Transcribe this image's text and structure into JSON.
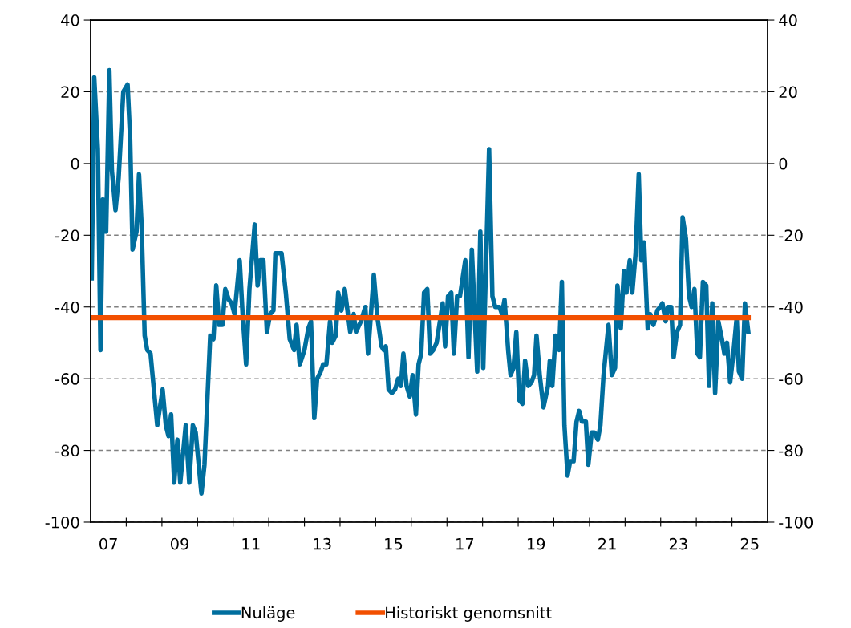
{
  "chart_data": {
    "type": "line",
    "xlim": [
      "2007-01-01",
      "2026-01-01"
    ],
    "xticks": [
      {
        "value": "2008-01-01",
        "label": null
      },
      {
        "value": "2009-01-01",
        "label": null
      },
      {
        "value": "2010-01-01",
        "label": null
      },
      {
        "value": "2011-01-01",
        "label": null
      },
      {
        "value": "2012-01-01",
        "label": null
      },
      {
        "value": "2013-01-01",
        "label": null
      },
      {
        "value": "2014-01-01",
        "label": null
      },
      {
        "value": "2015-01-01",
        "label": null
      },
      {
        "value": "2016-01-01",
        "label": null
      },
      {
        "value": "2017-01-01",
        "label": null
      },
      {
        "value": "2018-01-01",
        "label": null
      },
      {
        "value": "2019-01-01",
        "label": null
      },
      {
        "value": "2020-01-01",
        "label": null
      },
      {
        "value": "2021-01-01",
        "label": null
      },
      {
        "value": "2022-01-01",
        "label": null
      },
      {
        "value": "2023-01-01",
        "label": null
      },
      {
        "value": "2024-01-01",
        "label": null
      },
      {
        "value": "2025-01-01",
        "label": null
      },
      {
        "value": "2007-07-02",
        "label": "07"
      },
      {
        "value": "2009-07-02",
        "label": "09"
      },
      {
        "value": "2011-07-02",
        "label": "11"
      },
      {
        "value": "2013-07-02",
        "label": "13"
      },
      {
        "value": "2015-07-02",
        "label": "15"
      },
      {
        "value": "2017-07-02",
        "label": "17"
      },
      {
        "value": "2019-07-02",
        "label": "19"
      },
      {
        "value": "2021-07-02",
        "label": "21"
      },
      {
        "value": "2023-07-02",
        "label": "23"
      },
      {
        "value": "2025-07-02",
        "label": "25"
      }
    ],
    "ylim": [
      -100,
      40
    ],
    "yticks": [
      -100,
      -80,
      -60,
      -40,
      -20,
      0,
      20,
      40
    ],
    "y2lim": [
      -100,
      40
    ],
    "y2ticks": [
      -100,
      -80,
      -60,
      -40,
      -20,
      0,
      20,
      40
    ],
    "grid": "y",
    "legend": "bottom",
    "marker": "none",
    "line_style": "solid",
    "ref_lines": [
      {
        "axis": "y",
        "value": 0,
        "label": null,
        "color": "#a0a0a0",
        "line_style": "solid"
      }
    ],
    "series": [
      {
        "name": "Nuläge",
        "color": "#006e9e",
        "x": [
          "2007-01-12",
          "2007-02-07",
          "2007-03-16",
          "2007-04-12",
          "2007-05-07",
          "2007-06-09",
          "2007-07-12",
          "2007-08-07",
          "2007-09-13",
          "2007-10-15",
          "2007-12-02",
          "2008-01-15",
          "2008-02-10",
          "2008-03-06",
          "2008-04-15",
          "2008-05-11",
          "2008-06-06",
          "2008-07-08",
          "2008-08-03",
          "2008-09-06",
          "2008-11-14",
          "2009-01-08",
          "2009-02-10",
          "2009-03-09",
          "2009-04-05",
          "2009-05-07",
          "2009-06-09",
          "2009-07-08",
          "2009-09-02",
          "2009-10-08",
          "2009-11-14",
          "2009-12-13",
          "2010-02-10",
          "2010-03-13",
          "2010-05-11",
          "2010-06-13",
          "2010-07-12",
          "2010-08-10",
          "2010-09-13",
          "2010-10-12",
          "2010-11-18",
          "2010-12-17",
          "2011-01-15",
          "2011-03-09",
          "2011-04-08",
          "2011-05-14",
          "2011-06-17",
          "2011-08-10",
          "2011-09-09",
          "2011-10-05",
          "2011-11-07",
          "2011-12-13",
          "2012-01-15",
          "2012-02-18",
          "2012-03-09",
          "2012-05-11",
          "2012-06-24",
          "2012-08-03",
          "2012-09-17",
          "2012-10-12",
          "2012-11-14",
          "2013-01-01",
          "2013-02-10",
          "2013-03-09",
          "2013-04-12",
          "2013-05-11",
          "2013-06-17",
          "2013-07-12",
          "2013-08-14",
          "2013-09-20",
          "2013-10-12",
          "2013-11-18",
          "2013-12-13",
          "2014-01-15",
          "2014-02-18",
          "2014-04-15",
          "2014-05-21",
          "2014-06-13",
          "2014-08-03",
          "2014-09-17",
          "2014-10-15",
          "2014-12-13",
          "2015-01-19",
          "2015-03-02",
          "2015-03-24",
          "2015-04-15",
          "2015-05-14",
          "2015-06-17",
          "2015-07-19",
          "2015-08-21",
          "2015-09-17",
          "2015-10-12",
          "2015-11-14",
          "2015-12-17",
          "2016-01-15",
          "2016-02-18",
          "2016-03-16",
          "2016-04-12",
          "2016-05-11",
          "2016-06-13",
          "2016-07-12",
          "2016-08-14",
          "2016-09-17",
          "2016-11-18",
          "2016-12-13",
          "2017-01-12",
          "2017-02-14",
          "2017-03-13",
          "2017-04-15",
          "2017-05-14",
          "2017-07-08",
          "2017-08-10",
          "2017-09-13",
          "2017-11-07",
          "2017-12-09",
          "2018-01-08",
          "2018-03-09",
          "2018-04-12",
          "2018-05-11",
          "2018-06-24",
          "2018-07-19",
          "2018-08-14",
          "2018-09-20",
          "2018-10-15",
          "2018-11-14",
          "2018-12-13",
          "2019-01-12",
          "2019-02-14",
          "2019-03-13",
          "2019-04-15",
          "2019-05-18",
          "2019-06-13",
          "2019-07-08",
          "2019-08-10",
          "2019-09-17",
          "2019-11-03",
          "2019-11-21",
          "2019-12-17",
          "2020-01-19",
          "2020-02-25",
          "2020-03-24",
          "2020-04-19",
          "2020-05-21",
          "2020-06-17",
          "2020-07-22",
          "2020-08-21",
          "2020-09-17",
          "2020-10-15",
          "2020-11-25",
          "2020-12-20",
          "2021-01-23",
          "2021-02-21",
          "2021-03-27",
          "2021-04-23",
          "2021-05-25",
          "2021-07-15",
          "2021-08-18",
          "2021-09-20",
          "2021-10-15",
          "2021-11-18",
          "2021-12-20",
          "2022-01-15",
          "2022-02-18",
          "2022-03-16",
          "2022-04-19",
          "2022-05-21",
          "2022-06-17",
          "2022-07-15",
          "2022-08-21",
          "2022-09-17",
          "2022-10-19",
          "2022-11-28",
          "2023-01-19",
          "2023-02-21",
          "2023-03-16",
          "2023-04-19",
          "2023-05-14",
          "2023-06-17",
          "2023-07-19",
          "2023-08-14",
          "2023-09-17",
          "2023-10-19",
          "2023-11-14",
          "2023-12-13",
          "2024-01-12",
          "2024-02-07",
          "2024-03-09",
          "2024-04-12",
          "2024-05-11",
          "2024-06-13",
          "2024-07-12",
          "2024-08-14",
          "2024-09-20",
          "2024-10-15",
          "2024-11-11",
          "2024-12-13",
          "2025-01-15",
          "2025-02-18",
          "2025-03-13",
          "2025-04-15",
          "2025-05-14",
          "2025-06-17"
        ],
        "values": [
          -32,
          24,
          4,
          -52,
          -10,
          -19,
          26,
          -2,
          -13,
          -4,
          20,
          22,
          7,
          -24,
          -19,
          -3,
          -17,
          -48,
          -52,
          -53,
          -73,
          -63,
          -73,
          -76,
          -70,
          -89,
          -77,
          -89,
          -73,
          -89,
          -73,
          -75,
          -92,
          -84,
          -48,
          -49,
          -34,
          -45,
          -45,
          -35,
          -38,
          -39,
          -42,
          -27,
          -42,
          -56,
          -35,
          -17,
          -34,
          -27,
          -27,
          -47,
          -42,
          -41,
          -25,
          -25,
          -36,
          -49,
          -52,
          -45,
          -56,
          -52,
          -46,
          -44,
          -71,
          -60,
          -58,
          -56,
          -56,
          -44,
          -50,
          -48,
          -36,
          -41,
          -35,
          -47,
          -42,
          -47,
          -44,
          -40,
          -53,
          -31,
          -43,
          -51,
          -52,
          -51,
          -63,
          -64,
          -63,
          -60,
          -62,
          -53,
          -62,
          -65,
          -59,
          -70,
          -56,
          -53,
          -36,
          -35,
          -53,
          -52,
          -50,
          -39,
          -51,
          -37,
          -36,
          -53,
          -37,
          -37,
          -27,
          -54,
          -24,
          -58,
          -19,
          -57,
          4,
          -37,
          -40,
          -40,
          -42,
          -38,
          -52,
          -59,
          -57,
          -47,
          -66,
          -67,
          -55,
          -62,
          -61,
          -59,
          -48,
          -59,
          -68,
          -62,
          -55,
          -62,
          -48,
          -52,
          -33,
          -73,
          -87,
          -83,
          -83,
          -72,
          -69,
          -72,
          -72,
          -84,
          -75,
          -75,
          -77,
          -73,
          -59,
          -45,
          -59,
          -57,
          -34,
          -46,
          -30,
          -36,
          -27,
          -36,
          -25,
          -3,
          -27,
          -22,
          -46,
          -42,
          -45,
          -41,
          -39,
          -44,
          -40,
          -40,
          -54,
          -47,
          -45,
          -15,
          -21,
          -37,
          -40,
          -35,
          -53,
          -54,
          -33,
          -34,
          -62,
          -39,
          -64,
          -44,
          -49,
          -53,
          -50,
          -61,
          -53,
          -43,
          -58,
          -60,
          -39,
          -47
        ]
      },
      {
        "name": "Historiskt genomsnitt",
        "color": "#f24f00",
        "x": [
          "2007-01-01",
          "2025-06-17"
        ],
        "values": [
          -43,
          -43
        ]
      }
    ]
  }
}
